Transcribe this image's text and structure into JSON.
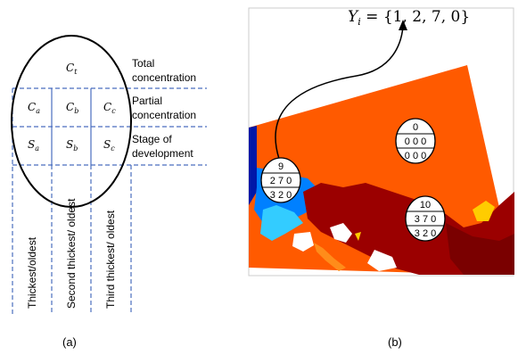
{
  "panel_a": {
    "oval_top": {
      "sym": "C",
      "sub": "t"
    },
    "grid": [
      [
        {
          "sym": "C",
          "sub": "a"
        },
        {
          "sym": "C",
          "sub": "b"
        },
        {
          "sym": "C",
          "sub": "c"
        }
      ],
      [
        {
          "sym": "S",
          "sub": "a"
        },
        {
          "sym": "S",
          "sub": "b"
        },
        {
          "sym": "S",
          "sub": "c"
        }
      ]
    ],
    "side_labels": [
      {
        "line1": "Total",
        "line2": "concentration"
      },
      {
        "line1": "Partial",
        "line2": "concentration"
      },
      {
        "line1": "Stage of",
        "line2": "development"
      }
    ],
    "columns": [
      "Thickest/oldest",
      "Second thickest/ oldest",
      "Third thickest/ oldest"
    ],
    "caption": "(a)"
  },
  "panel_b": {
    "formula": {
      "lhs": "Y",
      "sub": "i",
      "rhs": " = {1, 2, 7, 0}"
    },
    "colors": {
      "orange": "#ff5a00",
      "darkred": "#9b0000",
      "maroon": "#7a0000",
      "navy": "#0018a8",
      "blue": "#0080ff",
      "cyan": "#33ccff",
      "yellow": "#ffcc00",
      "land": "#ffffff"
    },
    "ovals": [
      {
        "id": "cell-0",
        "top": "0",
        "mid": "0 0 0",
        "bot": "0 0 0"
      },
      {
        "id": "cell-9",
        "top": "9",
        "mid": "2 7 0",
        "bot": "3 2 0"
      },
      {
        "id": "cell-10",
        "top": "10",
        "mid": "3 7 0",
        "bot": "3 2 0"
      }
    ],
    "caption": "(b)"
  }
}
